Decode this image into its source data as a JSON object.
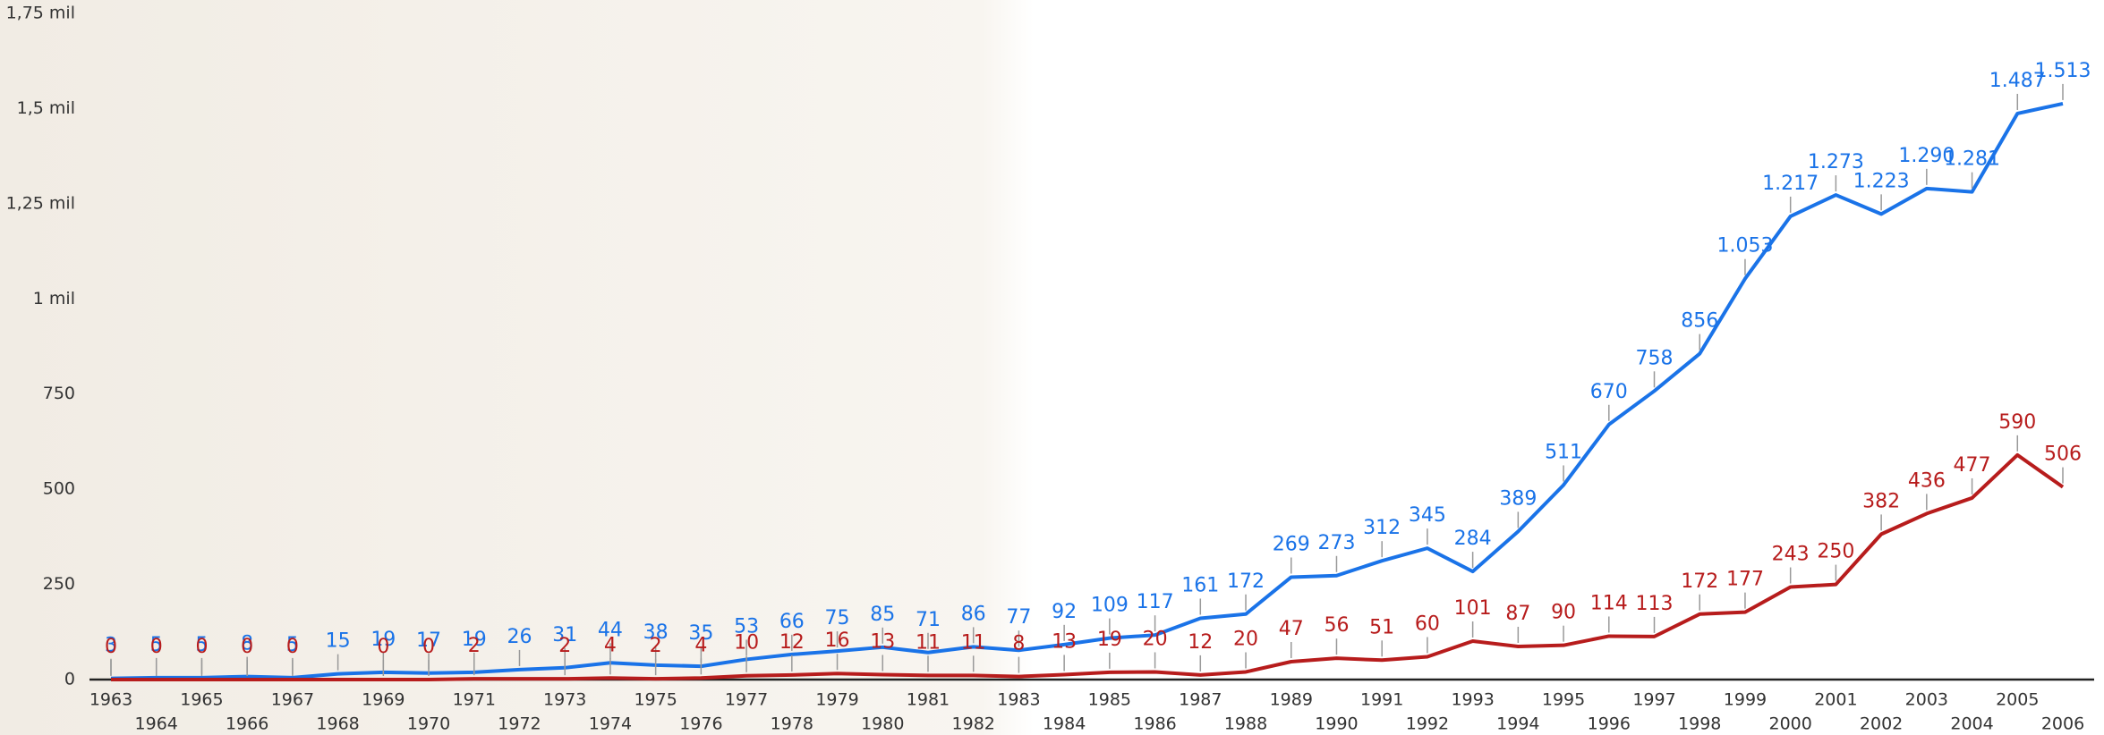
{
  "chart_data": {
    "type": "line",
    "categories": [
      "1963",
      "1964",
      "1965",
      "1966",
      "1967",
      "1968",
      "1969",
      "1970",
      "1971",
      "1972",
      "1973",
      "1974",
      "1975",
      "1976",
      "1977",
      "1978",
      "1979",
      "1980",
      "1981",
      "1982",
      "1983",
      "1984",
      "1985",
      "1986",
      "1987",
      "1988",
      "1989",
      "1990",
      "1991",
      "1992",
      "1993",
      "1994",
      "1995",
      "1996",
      "1997",
      "1998",
      "1999",
      "2000",
      "2001",
      "2002",
      "2003",
      "2004",
      "2005",
      "2006"
    ],
    "series": [
      {
        "color": "#1a73e8",
        "values": [
          3,
          5,
          5,
          8,
          5,
          15,
          19,
          17,
          19,
          26,
          31,
          44,
          38,
          35,
          53,
          66,
          75,
          85,
          71,
          86,
          77,
          92,
          109,
          117,
          161,
          172,
          269,
          273,
          312,
          345,
          284,
          389,
          511,
          670,
          758,
          856,
          1053,
          1217,
          1273,
          1223,
          1290,
          1281,
          1487,
          1513
        ],
        "value_labels": [
          "3",
          "5",
          "5",
          "8",
          "5",
          "15",
          "19",
          "17",
          "19",
          "26",
          "31",
          "44",
          "38",
          "35",
          "53",
          "66",
          "75",
          "85",
          "71",
          "86",
          "77",
          "92",
          "109",
          "117",
          "161",
          "172",
          "269",
          "273",
          "312",
          "345",
          "284",
          "389",
          "511",
          "670",
          "758",
          "856",
          "1.053",
          "1.217",
          "1.273",
          "1.223",
          "1.290",
          "1.281",
          "1.487",
          "1.513"
        ]
      },
      {
        "color": "#b71c1c",
        "values": [
          0,
          0,
          0,
          0,
          0,
          0,
          0,
          0,
          2,
          2,
          2,
          4,
          2,
          4,
          10,
          12,
          16,
          13,
          11,
          11,
          8,
          13,
          19,
          20,
          12,
          20,
          47,
          56,
          51,
          60,
          101,
          87,
          90,
          114,
          113,
          172,
          177,
          243,
          250,
          382,
          436,
          477,
          590,
          506
        ],
        "value_labels": [
          "0",
          "0",
          "0",
          "0",
          "0",
          null,
          "0",
          "0",
          "2",
          null,
          "2",
          "4",
          "2",
          "4",
          "10",
          "12",
          "16",
          "13",
          "11",
          "11",
          "8",
          "13",
          "19",
          "20",
          "12",
          "20",
          "47",
          "56",
          "51",
          "60",
          "101",
          "87",
          "90",
          "114",
          "113",
          "172",
          "177",
          "243",
          "250",
          "382",
          "436",
          "477",
          "590",
          "506"
        ]
      }
    ],
    "ylim": [
      0,
      1750
    ],
    "yticks": [
      0,
      250,
      500,
      750,
      {
        "value": 1000,
        "label": "1 mil"
      },
      {
        "value": 1250,
        "label": "1,25 mil"
      },
      {
        "value": 1500,
        "label": "1,5 mil"
      },
      {
        "value": 1750,
        "label": "1,75 mil"
      }
    ]
  }
}
